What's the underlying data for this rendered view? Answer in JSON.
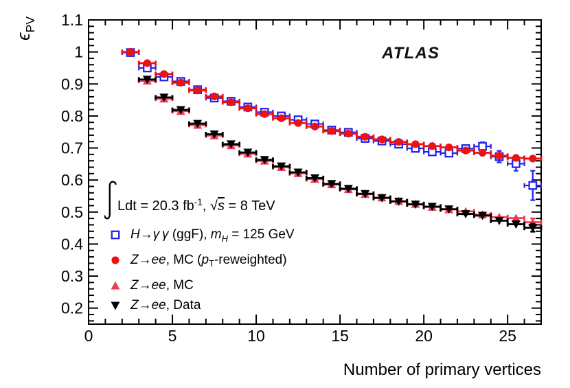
{
  "atlas_label": "ATLAS",
  "x_axis_title": "Number of primary vertices",
  "y_axis_title_segments": [
    {
      "text": "ϵ",
      "style": "i"
    },
    {
      "text": "PV",
      "style": "sub"
    }
  ],
  "luminosity_segments": [
    {
      "text": "∫",
      "style": "integral"
    },
    {
      "text": "Ldt = 20.3 fb"
    },
    {
      "text": "-1",
      "style": "sup"
    },
    {
      "text": ", "
    },
    {
      "text": "√"
    },
    {
      "text": "s",
      "style": "i-ov"
    },
    {
      "text": " = 8 TeV"
    }
  ],
  "axes": {
    "x": {
      "min": 0,
      "max": 27,
      "major_ticks": [
        0,
        5,
        10,
        15,
        20,
        25
      ],
      "tick_labels": [
        "0",
        "5",
        "10",
        "15",
        "20",
        "25"
      ],
      "minor_step": 1
    },
    "y": {
      "min": 0.15,
      "max": 1.1,
      "major_ticks": [
        0.2,
        0.3,
        0.4,
        0.5,
        0.6,
        0.7,
        0.8,
        0.9,
        1.0,
        1.1
      ],
      "tick_labels": [
        "0.2",
        "0.3",
        "0.4",
        "0.5",
        "0.6",
        "0.7",
        "0.8",
        "0.9",
        "1",
        "1.1"
      ],
      "minor_step": 0.02
    }
  },
  "chart_data": {
    "type": "scatter",
    "xlabel": "Number of primary vertices",
    "ylabel": "epsilon_PV",
    "xlim": [
      0,
      27
    ],
    "ylim": [
      0.15,
      1.1
    ],
    "xerr_halfwidth": 0.5,
    "series": [
      {
        "name": "H->gamma gamma (ggF), m_H = 125 GeV",
        "marker": "open-square",
        "color": "#2323ee",
        "x": [
          2.5,
          3.5,
          4.5,
          5.5,
          6.5,
          7.5,
          8.5,
          9.5,
          10.5,
          11.5,
          12.5,
          13.5,
          14.5,
          15.5,
          16.5,
          17.5,
          18.5,
          19.5,
          20.5,
          21.5,
          22.5,
          23.5,
          24.5,
          25.5,
          26.5
        ],
        "y": [
          0.998,
          0.95,
          0.922,
          0.908,
          0.882,
          0.856,
          0.846,
          0.828,
          0.812,
          0.8,
          0.788,
          0.775,
          0.756,
          0.749,
          0.73,
          0.722,
          0.712,
          0.699,
          0.688,
          0.684,
          0.698,
          0.705,
          0.673,
          0.651,
          0.583
        ],
        "yerr": [
          0.004,
          0.004,
          0.004,
          0.004,
          0.004,
          0.004,
          0.004,
          0.004,
          0.004,
          0.004,
          0.005,
          0.005,
          0.005,
          0.005,
          0.006,
          0.006,
          0.007,
          0.008,
          0.009,
          0.01,
          0.011,
          0.013,
          0.018,
          0.022,
          0.046
        ]
      },
      {
        "name": "Z->ee, MC (pT-reweighted)",
        "marker": "filled-circle",
        "color": "#ee1111",
        "x": [
          2.5,
          3.5,
          4.5,
          5.5,
          6.5,
          7.5,
          8.5,
          9.5,
          10.5,
          11.5,
          12.5,
          13.5,
          14.5,
          15.5,
          16.5,
          17.5,
          18.5,
          19.5,
          20.5,
          21.5,
          22.5,
          23.5,
          24.5,
          25.5,
          26.5
        ],
        "y": [
          1.0,
          0.965,
          0.931,
          0.904,
          0.88,
          0.861,
          0.843,
          0.824,
          0.806,
          0.793,
          0.778,
          0.767,
          0.753,
          0.745,
          0.735,
          0.727,
          0.719,
          0.712,
          0.706,
          0.702,
          0.692,
          0.685,
          0.676,
          0.669,
          0.667
        ],
        "yerr": [
          0.003,
          0.003,
          0.003,
          0.003,
          0.003,
          0.003,
          0.003,
          0.003,
          0.003,
          0.003,
          0.003,
          0.003,
          0.003,
          0.003,
          0.003,
          0.003,
          0.003,
          0.004,
          0.004,
          0.004,
          0.005,
          0.005,
          0.006,
          0.008,
          0.01
        ]
      },
      {
        "name": "Z->ee, MC",
        "marker": "filled-triangle-up",
        "color": "#f23b57",
        "x": [
          3.5,
          4.5,
          5.5,
          6.5,
          7.5,
          8.5,
          9.5,
          10.5,
          11.5,
          12.5,
          13.5,
          14.5,
          15.5,
          16.5,
          17.5,
          18.5,
          19.5,
          20.5,
          21.5,
          22.5,
          23.5,
          24.5,
          25.5,
          26.5
        ],
        "y": [
          0.91,
          0.854,
          0.815,
          0.772,
          0.739,
          0.708,
          0.682,
          0.66,
          0.64,
          0.621,
          0.603,
          0.586,
          0.571,
          0.556,
          0.545,
          0.534,
          0.525,
          0.516,
          0.508,
          0.502,
          0.492,
          0.484,
          0.481,
          0.468
        ],
        "yerr": [
          0.003,
          0.003,
          0.003,
          0.003,
          0.003,
          0.003,
          0.003,
          0.003,
          0.003,
          0.003,
          0.003,
          0.003,
          0.003,
          0.003,
          0.003,
          0.003,
          0.004,
          0.004,
          0.004,
          0.005,
          0.006,
          0.007,
          0.008,
          0.012
        ]
      },
      {
        "name": "Z->ee, Data",
        "marker": "filled-triangle-down",
        "color": "#000000",
        "x": [
          3.5,
          4.5,
          5.5,
          6.5,
          7.5,
          8.5,
          9.5,
          10.5,
          11.5,
          12.5,
          13.5,
          14.5,
          15.5,
          16.5,
          17.5,
          18.5,
          19.5,
          20.5,
          21.5,
          22.5,
          23.5,
          24.5,
          25.5,
          26.5
        ],
        "y": [
          0.914,
          0.858,
          0.819,
          0.776,
          0.743,
          0.712,
          0.686,
          0.663,
          0.643,
          0.624,
          0.606,
          0.588,
          0.573,
          0.557,
          0.544,
          0.533,
          0.524,
          0.517,
          0.509,
          0.494,
          0.489,
          0.473,
          0.462,
          0.451
        ],
        "yerr": [
          0.003,
          0.003,
          0.003,
          0.003,
          0.003,
          0.003,
          0.003,
          0.003,
          0.003,
          0.003,
          0.003,
          0.003,
          0.003,
          0.003,
          0.003,
          0.004,
          0.004,
          0.005,
          0.006,
          0.007,
          0.008,
          0.009,
          0.01,
          0.012
        ]
      }
    ]
  },
  "legend": {
    "entries": [
      {
        "marker": "open-square",
        "color": "#2323ee",
        "label": "H->gamma gamma (ggF), m_H = 125 GeV",
        "segments": [
          {
            "text": "H",
            "style": "i"
          },
          {
            "text": "→"
          },
          {
            "text": "γ γ",
            "style": "i"
          },
          {
            "text": " (ggF), "
          },
          {
            "text": "m",
            "style": "i"
          },
          {
            "text": "H",
            "style": "isub"
          },
          {
            "text": " = 125 GeV"
          }
        ]
      },
      {
        "marker": "filled-circle",
        "color": "#ee1111",
        "label": "Z->ee, MC (pT-reweighted)",
        "segments": [
          {
            "text": "Z",
            "style": "i"
          },
          {
            "text": "→"
          },
          {
            "text": "ee",
            "style": "i"
          },
          {
            "text": ", MC ("
          },
          {
            "text": "p",
            "style": "i"
          },
          {
            "text": "T",
            "style": "sub"
          },
          {
            "text": "-reweighted)"
          }
        ]
      },
      {
        "marker": "filled-triangle-up",
        "color": "#f23b57",
        "label": "Z->ee, MC",
        "segments": [
          {
            "text": "Z",
            "style": "i"
          },
          {
            "text": "→"
          },
          {
            "text": "ee",
            "style": "i"
          },
          {
            "text": ", MC"
          }
        ]
      },
      {
        "marker": "filled-triangle-down",
        "color": "#000000",
        "label": "Z->ee, Data",
        "segments": [
          {
            "text": "Z",
            "style": "i"
          },
          {
            "text": "→"
          },
          {
            "text": "ee",
            "style": "i"
          },
          {
            "text": ", Data"
          }
        ]
      }
    ]
  }
}
